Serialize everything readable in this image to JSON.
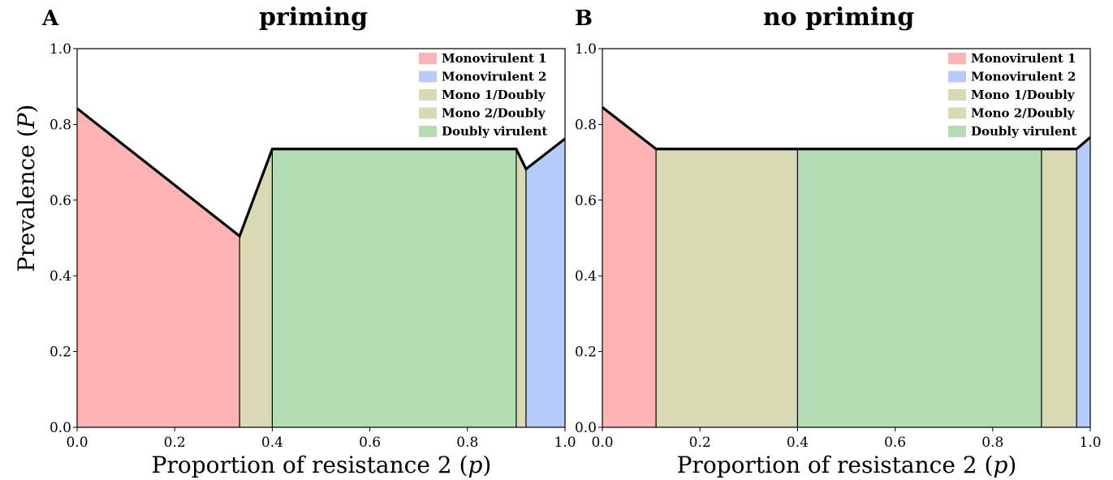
{
  "figure": {
    "ylabel_text": "Prevalence (",
    "ylabel_var": "P",
    "ylabel_close": ")"
  },
  "chart_data": [
    {
      "type": "area",
      "panel_letter": "A",
      "title": "priming",
      "xlabel_text": "Proportion of resistance 2 (",
      "xlabel_var": "p",
      "xlabel_close": ")",
      "xlim": [
        0,
        1
      ],
      "ylim": [
        0,
        1
      ],
      "xticks": [
        "0.0",
        "0.2",
        "0.4",
        "0.6",
        "0.8",
        "1.0"
      ],
      "yticks": [
        "0.0",
        "0.2",
        "0.4",
        "0.6",
        "0.8",
        "1.0"
      ],
      "legend": {
        "position": "top-right",
        "entries": [
          "Monovirulent 1",
          "Monovirulent 2",
          "Mono 1/Doubly",
          "Mono 2/Doubly",
          "Doubly virulent"
        ]
      },
      "colors": {
        "Monovirulent 1": "#ffb3b3",
        "Monovirulent 2": "#b3ccfa",
        "Mono 1/Doubly": "#d9dab3",
        "Mono 2/Doubly": "#d9dab3",
        "Doubly virulent": "#b3deb3"
      },
      "regions": [
        {
          "name": "Monovirulent 1",
          "x": [
            0.0,
            0.333
          ],
          "y": [
            0.842,
            0.505
          ]
        },
        {
          "name": "Mono 1/Doubly",
          "x": [
            0.333,
            0.4
          ],
          "y": [
            0.505,
            0.735
          ]
        },
        {
          "name": "Doubly virulent",
          "x": [
            0.4,
            0.9
          ],
          "y": [
            0.735,
            0.735
          ]
        },
        {
          "name": "Mono 2/Doubly",
          "x": [
            0.9,
            0.92
          ],
          "y": [
            0.735,
            0.682
          ]
        },
        {
          "name": "Monovirulent 2",
          "x": [
            0.92,
            1.0
          ],
          "y": [
            0.682,
            0.762
          ]
        }
      ]
    },
    {
      "type": "area",
      "panel_letter": "B",
      "title": "no priming",
      "xlabel_text": "Proportion of resistance 2 (",
      "xlabel_var": "p",
      "xlabel_close": ")",
      "xlim": [
        0,
        1
      ],
      "ylim": [
        0,
        1
      ],
      "xticks": [
        "0.0",
        "0.2",
        "0.4",
        "0.6",
        "0.8",
        "1.0"
      ],
      "yticks": [
        "0.0",
        "0.2",
        "0.4",
        "0.6",
        "0.8",
        "1.0"
      ],
      "legend": {
        "position": "top-right",
        "entries": [
          "Monovirulent 1",
          "Monovirulent 2",
          "Mono 1/Doubly",
          "Mono 2/Doubly",
          "Doubly virulent"
        ]
      },
      "colors": {
        "Monovirulent 1": "#ffb3b3",
        "Monovirulent 2": "#b3ccfa",
        "Mono 1/Doubly": "#d9dab3",
        "Mono 2/Doubly": "#d9dab3",
        "Doubly virulent": "#b3deb3"
      },
      "regions": [
        {
          "name": "Monovirulent 1",
          "x": [
            0.0,
            0.11
          ],
          "y": [
            0.845,
            0.735
          ]
        },
        {
          "name": "Mono 1/Doubly",
          "x": [
            0.11,
            0.4
          ],
          "y": [
            0.735,
            0.735
          ]
        },
        {
          "name": "Doubly virulent",
          "x": [
            0.4,
            0.9
          ],
          "y": [
            0.735,
            0.735
          ]
        },
        {
          "name": "Mono 2/Doubly",
          "x": [
            0.9,
            0.972
          ],
          "y": [
            0.735,
            0.735
          ]
        },
        {
          "name": "Monovirulent 2",
          "x": [
            0.972,
            1.0
          ],
          "y": [
            0.735,
            0.766
          ]
        }
      ]
    }
  ]
}
